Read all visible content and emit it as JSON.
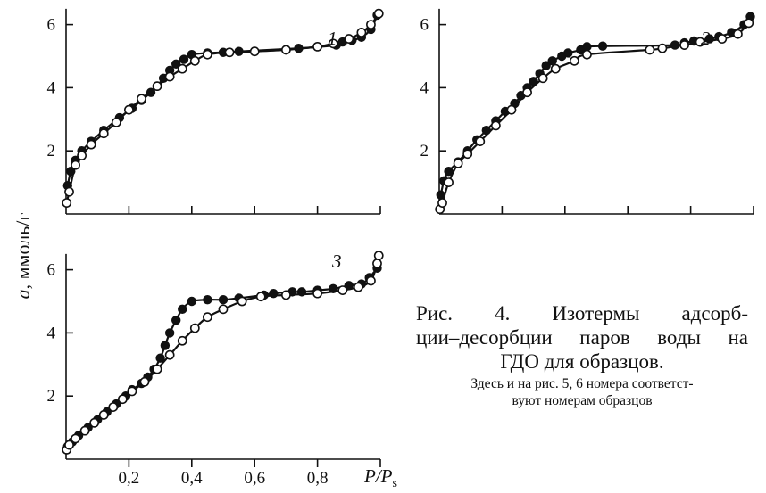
{
  "caption": {
    "line1": "Рис. 4. Изотермы адсорб-",
    "line2": "ции–десорбции паров воды на",
    "line3": "ГДО для образцов.",
    "note_line1": "Здесь и на рис. 5, 6 номера соответст-",
    "note_line2": "вуют номерам образцов"
  },
  "ylabel_italic": "a",
  "ylabel_rest": ", ммоль/г",
  "xlabel_italic": "P/P",
  "xlabel_sub": "s",
  "chart_data": [
    {
      "type": "line",
      "panel_label": "1",
      "xlim": [
        0,
        1.0
      ],
      "ylim": [
        0,
        6.5
      ],
      "yticks": [
        2,
        4,
        6
      ],
      "xticks": [
        0.2,
        0.4,
        0.6,
        0.8
      ],
      "xtick_labels": [],
      "series": [
        {
          "marker": "filled",
          "x": [
            0.005,
            0.015,
            0.03,
            0.05,
            0.08,
            0.12,
            0.17,
            0.21,
            0.24,
            0.27,
            0.29,
            0.31,
            0.33,
            0.35,
            0.375,
            0.4,
            0.45,
            0.5,
            0.55,
            0.74,
            0.86,
            0.88,
            0.91,
            0.94,
            0.97,
            0.99
          ],
          "y": [
            0.9,
            1.35,
            1.7,
            2.0,
            2.3,
            2.65,
            3.05,
            3.35,
            3.6,
            3.85,
            4.05,
            4.3,
            4.55,
            4.75,
            4.9,
            5.05,
            5.1,
            5.12,
            5.15,
            5.25,
            5.35,
            5.45,
            5.5,
            5.6,
            5.85,
            6.3
          ]
        },
        {
          "marker": "open",
          "x": [
            0.002,
            0.01,
            0.03,
            0.05,
            0.08,
            0.12,
            0.16,
            0.2,
            0.24,
            0.29,
            0.33,
            0.37,
            0.41,
            0.45,
            0.52,
            0.6,
            0.7,
            0.8,
            0.85,
            0.9,
            0.94,
            0.97,
            0.995
          ],
          "y": [
            0.35,
            0.7,
            1.55,
            1.85,
            2.2,
            2.55,
            2.9,
            3.3,
            3.65,
            4.05,
            4.35,
            4.6,
            4.85,
            5.05,
            5.12,
            5.15,
            5.2,
            5.3,
            5.4,
            5.55,
            5.75,
            6.0,
            6.35
          ]
        }
      ]
    },
    {
      "type": "line",
      "panel_label": "2",
      "xlim": [
        0,
        1.0
      ],
      "ylim": [
        0,
        6.5
      ],
      "yticks": [
        2,
        4,
        6
      ],
      "xticks": [
        0.2,
        0.4,
        0.6,
        0.8
      ],
      "xtick_labels": [],
      "series": [
        {
          "marker": "filled",
          "x": [
            0.005,
            0.015,
            0.03,
            0.06,
            0.09,
            0.12,
            0.15,
            0.18,
            0.21,
            0.24,
            0.26,
            0.28,
            0.3,
            0.32,
            0.34,
            0.36,
            0.39,
            0.41,
            0.45,
            0.47,
            0.52,
            0.75,
            0.78,
            0.81,
            0.86,
            0.89,
            0.93,
            0.97,
            0.99
          ],
          "y": [
            0.6,
            1.05,
            1.35,
            1.65,
            2.0,
            2.35,
            2.65,
            2.95,
            3.25,
            3.5,
            3.75,
            4.0,
            4.2,
            4.45,
            4.7,
            4.85,
            5.0,
            5.1,
            5.2,
            5.3,
            5.32,
            5.35,
            5.42,
            5.48,
            5.55,
            5.62,
            5.75,
            6.0,
            6.25
          ]
        },
        {
          "marker": "open",
          "x": [
            0.002,
            0.01,
            0.03,
            0.06,
            0.09,
            0.13,
            0.18,
            0.23,
            0.28,
            0.33,
            0.37,
            0.43,
            0.47,
            0.67,
            0.71,
            0.78,
            0.83,
            0.9,
            0.95,
            0.985
          ],
          "y": [
            0.15,
            0.35,
            1.0,
            1.6,
            1.9,
            2.3,
            2.8,
            3.3,
            3.85,
            4.3,
            4.6,
            4.85,
            5.05,
            5.2,
            5.25,
            5.35,
            5.45,
            5.55,
            5.7,
            6.05
          ]
        }
      ]
    },
    {
      "type": "line",
      "panel_label": "3",
      "xlim": [
        0,
        1.0
      ],
      "ylim": [
        0,
        6.5
      ],
      "yticks": [
        2,
        4,
        6
      ],
      "xticks": [
        0.2,
        0.4,
        0.6,
        0.8
      ],
      "xtick_labels": [
        "0,2",
        "0,4",
        "0,6",
        "0,8"
      ],
      "series": [
        {
          "marker": "filled",
          "x": [
            0.005,
            0.02,
            0.04,
            0.07,
            0.1,
            0.13,
            0.16,
            0.19,
            0.21,
            0.24,
            0.26,
            0.28,
            0.3,
            0.315,
            0.33,
            0.35,
            0.37,
            0.4,
            0.45,
            0.5,
            0.55,
            0.63,
            0.66,
            0.72,
            0.75,
            0.8,
            0.85,
            0.9,
            0.94,
            0.965,
            0.99
          ],
          "y": [
            0.4,
            0.55,
            0.75,
            1.0,
            1.25,
            1.5,
            1.75,
            2.0,
            2.2,
            2.4,
            2.6,
            2.85,
            3.2,
            3.6,
            4.0,
            4.4,
            4.75,
            5.0,
            5.05,
            5.05,
            5.1,
            5.2,
            5.25,
            5.3,
            5.3,
            5.35,
            5.4,
            5.5,
            5.55,
            5.75,
            6.05
          ]
        },
        {
          "marker": "open",
          "x": [
            0.002,
            0.01,
            0.03,
            0.06,
            0.09,
            0.12,
            0.15,
            0.18,
            0.21,
            0.25,
            0.29,
            0.33,
            0.37,
            0.41,
            0.45,
            0.5,
            0.56,
            0.62,
            0.7,
            0.8,
            0.88,
            0.93,
            0.97,
            0.99,
            0.995
          ],
          "y": [
            0.3,
            0.45,
            0.65,
            0.9,
            1.15,
            1.4,
            1.65,
            1.9,
            2.15,
            2.45,
            2.85,
            3.3,
            3.75,
            4.15,
            4.5,
            4.75,
            5.0,
            5.15,
            5.2,
            5.25,
            5.35,
            5.45,
            5.65,
            6.2,
            6.45
          ]
        }
      ]
    }
  ]
}
